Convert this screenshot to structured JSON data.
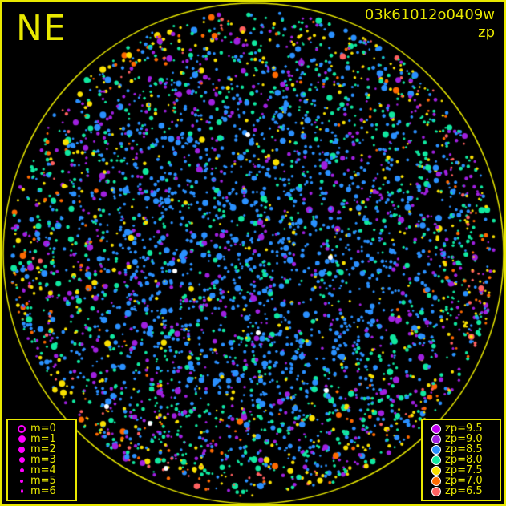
{
  "header": {
    "direction": "NE",
    "title": "03k61012o0409w",
    "subtitle": "zp"
  },
  "chart_data": {
    "type": "scatter",
    "title": "03k61012o0409w",
    "subtitle": "zp",
    "grid": false,
    "field": "all-sky circle",
    "size_legend": {
      "placement": "bottom-left",
      "entries": [
        {
          "label": "m=0",
          "mag": 0
        },
        {
          "label": "m=1",
          "mag": 1
        },
        {
          "label": "m=2",
          "mag": 2
        },
        {
          "label": "m=3",
          "mag": 3
        },
        {
          "label": "m=4",
          "mag": 4
        },
        {
          "label": "m=5",
          "mag": 5
        },
        {
          "label": "m=6",
          "mag": 6
        }
      ]
    },
    "color_legend": {
      "placement": "bottom-right",
      "entries": [
        {
          "label": "zp=9.5",
          "zp": 9.5,
          "color": "#c000f0"
        },
        {
          "label": "zp=9.0",
          "zp": 9.0,
          "color": "#a020e0"
        },
        {
          "label": "zp=8.5",
          "zp": 8.5,
          "color": "#2a90ff"
        },
        {
          "label": "zp=8.0",
          "zp": 8.0,
          "color": "#10e8a0"
        },
        {
          "label": "zp=7.5",
          "zp": 7.5,
          "color": "#f8e000"
        },
        {
          "label": "zp=7.0",
          "zp": 7.0,
          "color": "#ff6a00"
        },
        {
          "label": "zp=6.5",
          "zp": 6.5,
          "color": "#ff6060"
        }
      ]
    }
  },
  "colors": {
    "frame": "#e8e800",
    "background": "#000000",
    "symbol": "#ff00ff"
  }
}
